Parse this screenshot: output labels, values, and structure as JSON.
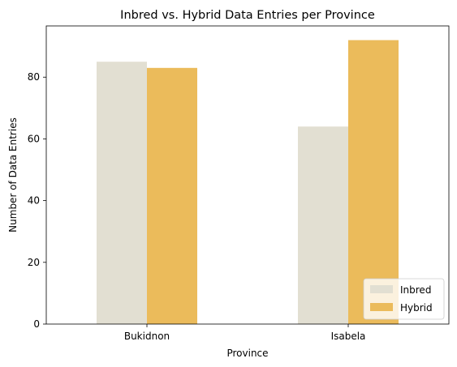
{
  "chart_data": {
    "type": "bar",
    "title": "Inbred vs. Hybrid Data Entries per Province",
    "xlabel": "Province",
    "ylabel": "Number of Data Entries",
    "categories": [
      "Bukidnon",
      "Isabela"
    ],
    "series": [
      {
        "name": "Inbred",
        "values": [
          85,
          64
        ],
        "color": "#e2dfd2"
      },
      {
        "name": "Hybrid",
        "values": [
          83,
          92
        ],
        "color": "#ebbb5b"
      }
    ],
    "ylim": [
      0,
      96.6
    ],
    "yticks": [
      0,
      20,
      40,
      60,
      80
    ],
    "grid": false,
    "legend_position": "lower-right"
  }
}
